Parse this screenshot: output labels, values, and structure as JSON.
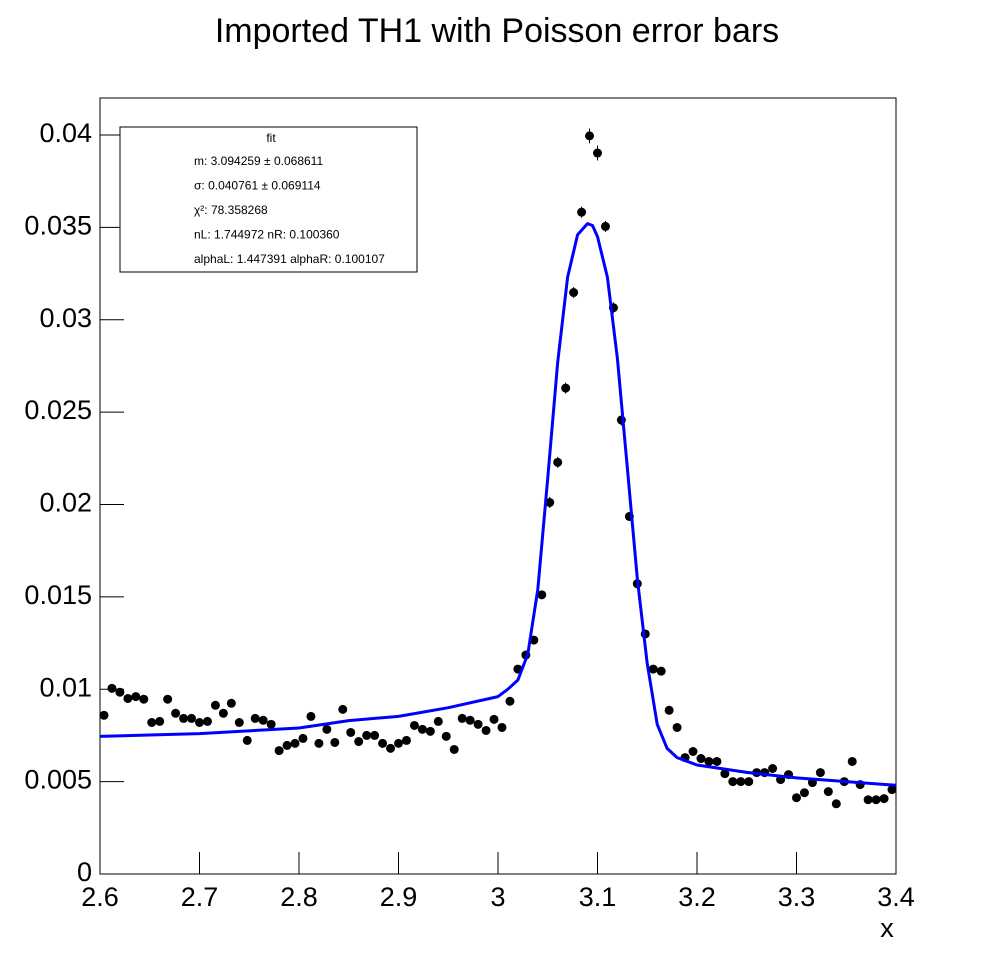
{
  "chart_data": {
    "type": "histogram",
    "title": "Imported TH1 with Poisson error bars",
    "x_label": "x",
    "marker_color": "#000000",
    "bins": [
      2.6,
      2.608,
      2.616,
      2.624,
      2.632,
      2.64,
      2.648,
      2.656,
      2.664,
      2.672,
      2.68,
      2.688,
      2.696,
      2.704,
      2.712,
      2.72,
      2.728,
      2.736,
      2.744,
      2.752,
      2.76,
      2.768,
      2.776,
      2.784,
      2.792,
      2.8,
      2.808,
      2.816,
      2.824,
      2.832,
      2.84,
      2.848,
      2.856,
      2.864,
      2.872,
      2.88,
      2.888,
      2.896,
      2.904,
      2.912,
      2.92,
      2.928,
      2.936,
      2.944,
      2.952,
      2.96,
      2.968,
      2.976,
      2.984,
      2.992,
      3,
      3.008,
      3.016,
      3.024,
      3.032,
      3.04,
      3.048,
      3.056,
      3.064,
      3.072,
      3.08,
      3.088,
      3.096,
      3.104,
      3.112,
      3.12,
      3.128,
      3.136,
      3.144,
      3.152,
      3.16,
      3.168,
      3.176,
      3.184,
      3.192,
      3.2,
      3.208,
      3.216,
      3.224,
      3.232,
      3.24,
      3.248,
      3.256,
      3.264,
      3.272,
      3.28,
      3.288,
      3.296,
      3.304,
      3.312,
      3.32,
      3.328,
      3.336,
      3.344,
      3.352,
      3.36,
      3.368,
      3.376,
      3.384,
      3.392,
      3.4
    ],
    "values": [
      0.00859,
      0.01005,
      0.00984,
      0.0095,
      0.0096,
      0.00946,
      0.0082,
      0.00826,
      0.00946,
      0.0087,
      0.00842,
      0.00842,
      0.0082,
      0.00826,
      0.00913,
      0.0087,
      0.00924,
      0.0082,
      0.00723,
      0.00842,
      0.00832,
      0.0081,
      0.00668,
      0.00696,
      0.00707,
      0.00734,
      0.00853,
      0.00707,
      0.00783,
      0.00712,
      0.00891,
      0.00766,
      0.00717,
      0.0075,
      0.0075,
      0.00707,
      0.0068,
      0.00707,
      0.00723,
      0.00804,
      0.00783,
      0.00772,
      0.00826,
      0.00745,
      0.00674,
      0.00842,
      0.00832,
      0.0081,
      0.00777,
      0.00837,
      0.00793,
      0.00935,
      0.01109,
      0.01185,
      0.01266,
      0.01511,
      0.02011,
      0.02228,
      0.0263,
      0.03147,
      0.03582,
      0.03995,
      0.03902,
      0.03505,
      0.03065,
      0.02457,
      0.01935,
      0.01571,
      0.01299,
      0.01109,
      0.01098,
      0.00886,
      0.00793,
      0.0063,
      0.00663,
      0.00625,
      0.00609,
      0.00609,
      0.00543,
      0.005,
      0.005,
      0.005,
      0.00549,
      0.00549,
      0.00571,
      0.00511,
      0.00538,
      0.00413,
      0.0044,
      0.00495,
      0.00549,
      0.00446,
      0.0038,
      0.005,
      0.00609,
      0.00484,
      0.00402,
      0.00402,
      0.00408,
      0.00457
    ],
    "errors": [
      0.0002,
      0.0002,
      0.0002,
      0.0002,
      0.0002,
      0.0002,
      0.0002,
      0.0002,
      0.0002,
      0.0002,
      0.0002,
      0.0002,
      0.0002,
      0.0002,
      0.0002,
      0.0002,
      0.0002,
      0.0002,
      0.0002,
      0.0002,
      0.0002,
      0.0002,
      0.0002,
      0.0002,
      0.0002,
      0.0002,
      0.0002,
      0.0002,
      0.0002,
      0.0002,
      0.0002,
      0.0002,
      0.0002,
      0.0002,
      0.0002,
      0.0002,
      0.0002,
      0.0002,
      0.0002,
      0.0002,
      0.0002,
      0.0002,
      0.0002,
      0.0002,
      0.0002,
      0.0002,
      0.0002,
      0.0002,
      0.0002,
      0.0002,
      0.0002,
      0.0002,
      0.0002,
      0.0002,
      0.0002,
      0.0002,
      0.0003,
      0.0003,
      0.0003,
      0.0003,
      0.0003,
      0.0004,
      0.0004,
      0.0003,
      0.0003,
      0.0003,
      0.0002,
      0.0002,
      0.0002,
      0.0002,
      0.0002,
      0.0002,
      0.0002,
      0.0002,
      0.0002,
      0.0002,
      0.0002,
      0.0002,
      0.0002,
      0.0002,
      0.0002,
      0.0002,
      0.0002,
      0.0002,
      0.0002,
      0.0002,
      0.0002,
      0.0002,
      0.0002,
      0.0002,
      0.0002,
      0.0002,
      0.0002,
      0.0002,
      0.0002,
      0.0002,
      0.0002,
      0.0002,
      0.0002,
      0.0002
    ],
    "fit": {
      "color": "#0000ff",
      "x": [
        2.6,
        2.7,
        2.8,
        2.85,
        2.9,
        2.95,
        3,
        3.01,
        3.02,
        3.03,
        3.04,
        3.05,
        3.06,
        3.07,
        3.08,
        3.09,
        3.095,
        3.1,
        3.11,
        3.12,
        3.13,
        3.14,
        3.15,
        3.16,
        3.17,
        3.18,
        3.2,
        3.25,
        3.3,
        3.35,
        3.4
      ],
      "values": [
        0.00745,
        0.0076,
        0.0079,
        0.0083,
        0.00853,
        0.009,
        0.0096,
        0.01,
        0.0105,
        0.0119,
        0.0154,
        0.0214,
        0.0277,
        0.0323,
        0.0346,
        0.0352,
        0.0351,
        0.0345,
        0.0323,
        0.0279,
        0.022,
        0.016,
        0.0114,
        0.0081,
        0.0068,
        0.0063,
        0.0059,
        0.0055,
        0.0052,
        0.005,
        0.0048
      ]
    },
    "stats": {
      "title": "fit",
      "lines": [
        "m: 3.094259 ± 0.068611",
        "σ: 0.040761 ± 0.069114",
        "χ²: 78.358268",
        "nL: 1.744972 nR: 0.100360",
        "alphaL: 1.447391 alphaR: 0.100107"
      ]
    },
    "xlim": [
      2.6,
      3.4
    ],
    "xticks": [
      2.6,
      2.7,
      2.8,
      2.9,
      3,
      3.1,
      3.2,
      3.3,
      3.4
    ],
    "ylim": [
      0,
      0.042
    ],
    "yticks": [
      0,
      0.005,
      0.01,
      0.015,
      0.02,
      0.025,
      0.03,
      0.035,
      0.04
    ]
  }
}
